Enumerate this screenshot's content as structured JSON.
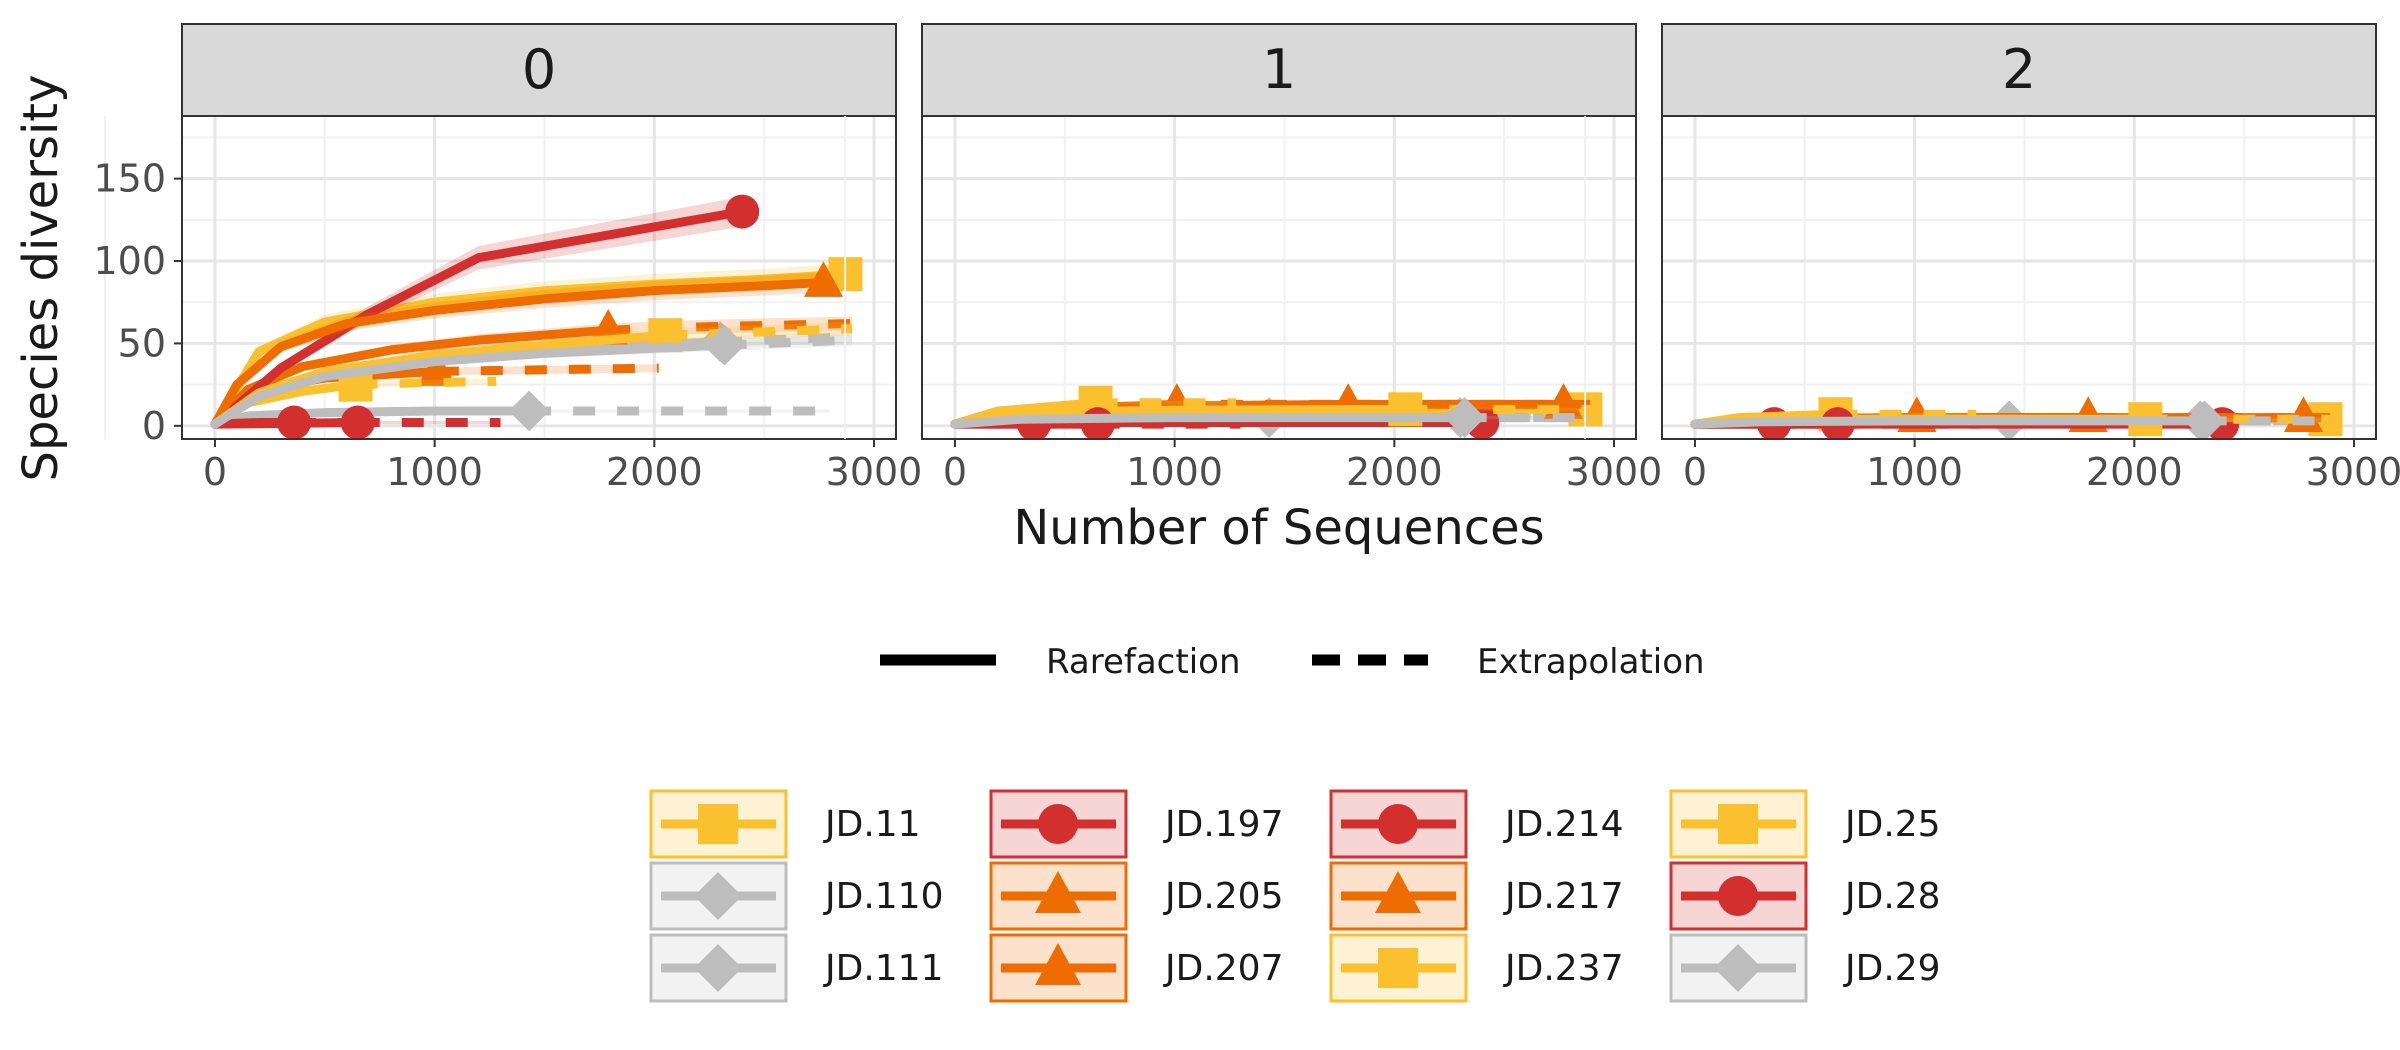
{
  "chart_data": {
    "type": "line",
    "facet_labels": [
      "0",
      "1",
      "2"
    ],
    "xlabel": "Number of Sequences",
    "ylabel": "Species diversity",
    "xlim": [
      -150,
      3100
    ],
    "ylim": [
      -8,
      188
    ],
    "x_ticks": [
      0,
      1000,
      2000,
      3000
    ],
    "y_ticks": [
      0,
      50,
      100,
      150
    ],
    "grid": true,
    "line_types": [
      {
        "name": "Rarefaction",
        "style": "solid"
      },
      {
        "name": "Extrapolation",
        "style": "dashed"
      }
    ],
    "colors": {
      "yellow": "#FBC02D",
      "orange": "#EF6C00",
      "red": "#D32F2F",
      "gray": "#BDBDBD"
    },
    "legend_placement": "bottom",
    "series": [
      {
        "name": "JD.11",
        "color": "#FBC02D",
        "shape": "square",
        "n_obs": 2870,
        "facets": [
          {
            "obs": 92,
            "x": [
              0,
              200,
              500,
              1000,
              1500,
              2000,
              2500,
              2870
            ],
            "y": [
              1,
              45,
              63,
              75,
              82,
              86,
              89,
              92
            ]
          },
          {
            "obs": 10,
            "x": [
              0,
              300,
              1000,
              2000,
              2870
            ],
            "y": [
              1,
              8,
              9.5,
              10,
              10
            ]
          },
          {
            "obs": 4,
            "x": [
              0,
              300,
              1000,
              2000,
              2870
            ],
            "y": [
              1,
              3.5,
              4,
              4,
              4
            ]
          }
        ]
      },
      {
        "name": "JD.110",
        "color": "#BDBDBD",
        "shape": "diamond",
        "n_obs": 1430,
        "facets": [
          {
            "obs": 9,
            "x": [
              0,
              150,
              500,
              1000,
              1430,
              2000,
              2800
            ],
            "y": [
              1,
              6,
              8,
              9,
              9,
              9,
              9
            ]
          },
          {
            "obs": 5,
            "x": [
              0,
              300,
              1430,
              2800
            ],
            "y": [
              1,
              4,
              5,
              5
            ]
          },
          {
            "obs": 3,
            "x": [
              0,
              300,
              1430,
              2800
            ],
            "y": [
              1,
              2.5,
              3,
              3
            ]
          }
        ]
      },
      {
        "name": "JD.111",
        "color": "#BDBDBD",
        "shape": "diamond",
        "n_obs": 2300,
        "facets": [
          {
            "obs": 51,
            "x": [
              0,
              200,
              500,
              1000,
              1500,
              2300,
              2900
            ],
            "y": [
              1,
              18,
              30,
              40,
              46,
              51,
              54
            ]
          },
          {
            "obs": 5,
            "x": [
              0,
              300,
              1000,
              2300,
              2900
            ],
            "y": [
              1,
              4,
              5,
              5,
              5
            ]
          },
          {
            "obs": 3,
            "x": [
              0,
              300,
              1000,
              2300,
              2900
            ],
            "y": [
              1,
              2.5,
              3,
              3,
              3
            ]
          }
        ]
      },
      {
        "name": "JD.197",
        "color": "#D32F2F",
        "shape": "circle",
        "n_obs": 360,
        "facets": [
          {
            "obs": 2,
            "x": [
              0,
              200,
              360,
              720
            ],
            "y": [
              1,
              2,
              2,
              2
            ]
          },
          {
            "obs": 1,
            "x": [
              0,
              360,
              720
            ],
            "y": [
              1,
              1,
              1
            ]
          },
          {
            "obs": 1,
            "x": [
              0,
              360,
              720
            ],
            "y": [
              1,
              1,
              1
            ]
          }
        ]
      },
      {
        "name": "JD.205",
        "color": "#EF6C00",
        "shape": "triangle",
        "n_obs": 1010,
        "facets": [
          {
            "obs": 33,
            "x": [
              0,
              200,
              500,
              1010,
              1500,
              2020
            ],
            "y": [
              1,
              22,
              29,
              33,
              34,
              35
            ]
          },
          {
            "obs": 13,
            "x": [
              0,
              200,
              1010,
              2020
            ],
            "y": [
              1,
              9,
              13,
              13
            ]
          },
          {
            "obs": 5,
            "x": [
              0,
              200,
              1010,
              2020
            ],
            "y": [
              1,
              4,
              5,
              5
            ]
          }
        ]
      },
      {
        "name": "JD.207",
        "color": "#EF6C00",
        "shape": "triangle",
        "n_obs": 1790,
        "facets": [
          {
            "obs": 58,
            "x": [
              0,
              150,
              400,
              800,
              1200,
              1790,
              2200,
              2900
            ],
            "y": [
              1,
              22,
              36,
              46,
              52,
              58,
              60,
              62
            ]
          },
          {
            "obs": 13,
            "x": [
              0,
              300,
              1000,
              1790,
              2900
            ],
            "y": [
              1,
              10,
              12,
              13,
              13
            ]
          },
          {
            "obs": 5,
            "x": [
              0,
              300,
              1000,
              1790,
              2900
            ],
            "y": [
              1,
              4,
              5,
              5,
              5
            ]
          }
        ]
      },
      {
        "name": "JD.214",
        "color": "#D32F2F",
        "shape": "circle",
        "n_obs": 2400,
        "facets": [
          {
            "obs": 130,
            "x": [
              0,
              300,
              700,
              1200,
              1800,
              2400
            ],
            "y": [
              1,
              35,
              68,
              102,
              116,
              130
            ]
          },
          {
            "obs": 2,
            "x": [
              0,
              600,
              1200,
              2400
            ],
            "y": [
              1,
              2,
              2,
              2
            ]
          },
          {
            "obs": 1,
            "x": [
              0,
              1200,
              2400
            ],
            "y": [
              1,
              1,
              1
            ]
          }
        ]
      },
      {
        "name": "JD.217",
        "color": "#EF6C00",
        "shape": "triangle",
        "n_obs": 2770,
        "facets": [
          {
            "obs": 87,
            "x": [
              0,
              100,
              300,
              600,
              1000,
              1500,
              2000,
              2500,
              2770
            ],
            "y": [
              1,
              25,
              48,
              62,
              70,
              77,
              82,
              85,
              87
            ]
          },
          {
            "obs": 13,
            "x": [
              0,
              300,
              1000,
              2000,
              2770
            ],
            "y": [
              1,
              10,
              12,
              13,
              13
            ]
          },
          {
            "obs": 5,
            "x": [
              0,
              300,
              1000,
              2000,
              2770
            ],
            "y": [
              1,
              4,
              5,
              5,
              5
            ]
          }
        ]
      },
      {
        "name": "JD.237",
        "color": "#FBC02D",
        "shape": "square",
        "n_obs": 640,
        "facets": [
          {
            "obs": 25,
            "x": [
              0,
              150,
              400,
              640,
              900,
              1280
            ],
            "y": [
              1,
              14,
              21,
              25,
              26,
              27
            ]
          },
          {
            "obs": 14,
            "x": [
              0,
              200,
              640,
              1280
            ],
            "y": [
              1,
              9,
              14,
              14
            ]
          },
          {
            "obs": 7,
            "x": [
              0,
              200,
              640,
              1280
            ],
            "y": [
              1,
              5,
              7,
              7
            ]
          }
        ]
      },
      {
        "name": "JD.25",
        "color": "#FBC02D",
        "shape": "square",
        "n_obs": 2050,
        "facets": [
          {
            "obs": 55,
            "x": [
              0,
              200,
              500,
              1000,
              1500,
              2050,
              2500,
              2900
            ],
            "y": [
              1,
              20,
              33,
              43,
              49,
              55,
              57,
              59
            ]
          },
          {
            "obs": 10,
            "x": [
              0,
              300,
              1000,
              2050,
              2900
            ],
            "y": [
              1,
              8,
              9.5,
              10,
              10
            ]
          },
          {
            "obs": 4,
            "x": [
              0,
              300,
              1000,
              2050,
              2900
            ],
            "y": [
              1,
              3.5,
              4,
              4,
              4
            ]
          }
        ]
      },
      {
        "name": "JD.28",
        "color": "#D32F2F",
        "shape": "circle",
        "n_obs": 650,
        "facets": [
          {
            "obs": 2,
            "x": [
              0,
              650,
              1300
            ],
            "y": [
              1,
              2,
              2
            ]
          },
          {
            "obs": 1,
            "x": [
              0,
              650,
              1300
            ],
            "y": [
              1,
              1,
              1
            ]
          },
          {
            "obs": 1,
            "x": [
              0,
              650,
              1300
            ],
            "y": [
              1,
              1,
              1
            ]
          }
        ]
      },
      {
        "name": "JD.29",
        "color": "#BDBDBD",
        "shape": "diamond",
        "n_obs": 2320,
        "facets": [
          {
            "obs": 49,
            "x": [
              0,
              200,
              500,
              1000,
              1500,
              2320,
              2900
            ],
            "y": [
              1,
              18,
              30,
              39,
              44,
              49,
              52
            ]
          },
          {
            "obs": 5,
            "x": [
              0,
              300,
              1000,
              2320,
              2900
            ],
            "y": [
              1,
              4,
              5,
              5,
              5
            ]
          },
          {
            "obs": 3,
            "x": [
              0,
              300,
              1000,
              2320,
              2900
            ],
            "y": [
              1,
              2.5,
              3,
              3,
              3
            ]
          }
        ]
      }
    ]
  }
}
